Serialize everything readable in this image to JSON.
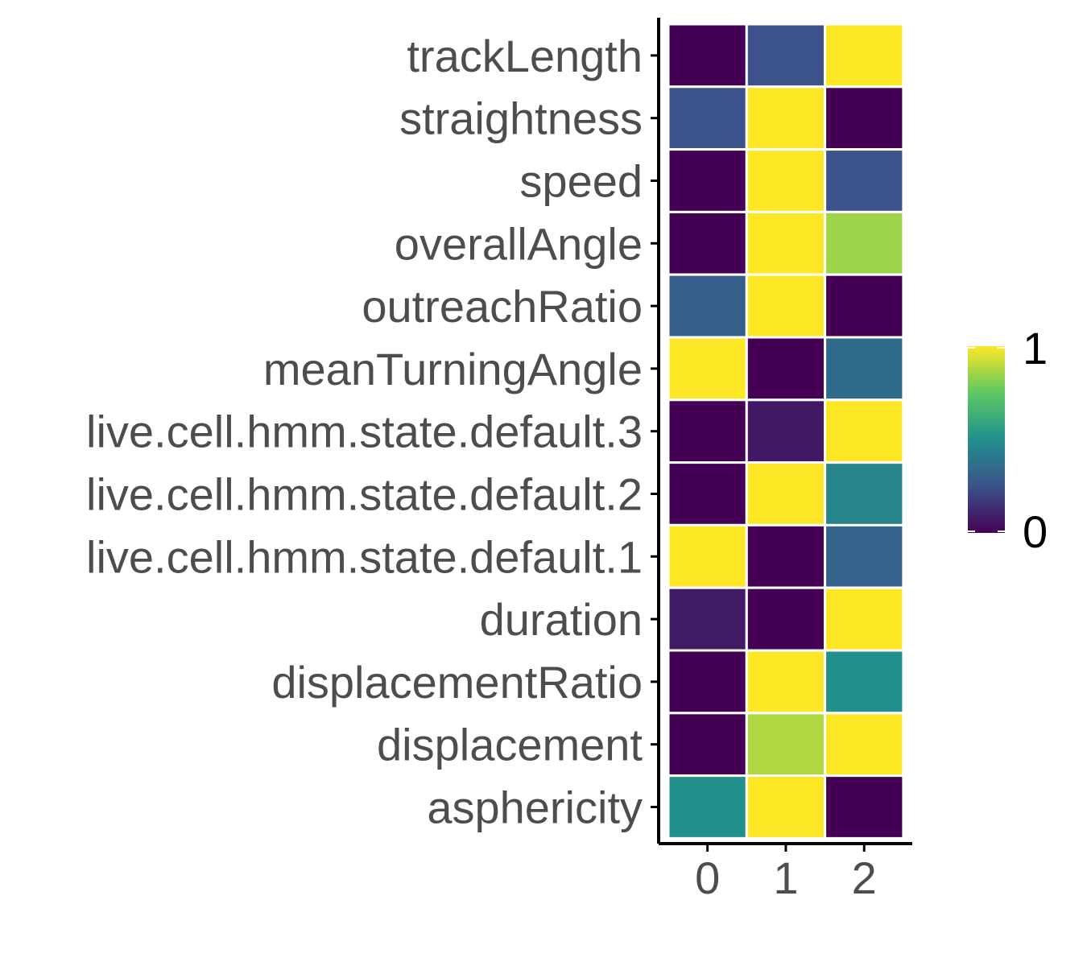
{
  "chart_data": {
    "type": "heatmap",
    "title": "",
    "xlabel": "",
    "ylabel": "",
    "x_categories": [
      "0",
      "1",
      "2"
    ],
    "y_categories": [
      "trackLength",
      "straightness",
      "speed",
      "overallAngle",
      "outreachRatio",
      "meanTurningAngle",
      "live.cell.hmm.state.default.3",
      "live.cell.hmm.state.default.2",
      "live.cell.hmm.state.default.1",
      "duration",
      "displacementRatio",
      "displacement",
      "asphericity"
    ],
    "values": [
      [
        0.0,
        0.25,
        1.0
      ],
      [
        0.25,
        1.0,
        0.0
      ],
      [
        0.0,
        1.0,
        0.25
      ],
      [
        0.0,
        1.0,
        0.85
      ],
      [
        0.3,
        1.0,
        0.0
      ],
      [
        1.0,
        0.0,
        0.35
      ],
      [
        0.0,
        0.07,
        1.0
      ],
      [
        0.0,
        1.0,
        0.45
      ],
      [
        1.0,
        0.0,
        0.32
      ],
      [
        0.08,
        0.0,
        1.0
      ],
      [
        0.0,
        1.0,
        0.5
      ],
      [
        0.0,
        0.88,
        1.0
      ],
      [
        0.5,
        1.0,
        0.0
      ]
    ],
    "value_range": [
      0,
      1
    ],
    "colorscale": "viridis",
    "colorscale_stops": [
      "#440154",
      "#3b528b",
      "#21908c",
      "#5dc863",
      "#fde725"
    ],
    "legend": {
      "position": "right",
      "tick_labels": [
        "1",
        "0"
      ]
    },
    "grid": false,
    "cell_border_color": "#ffffff",
    "axis_color": "#000000",
    "tick_label_color": "#4d4d4d"
  }
}
